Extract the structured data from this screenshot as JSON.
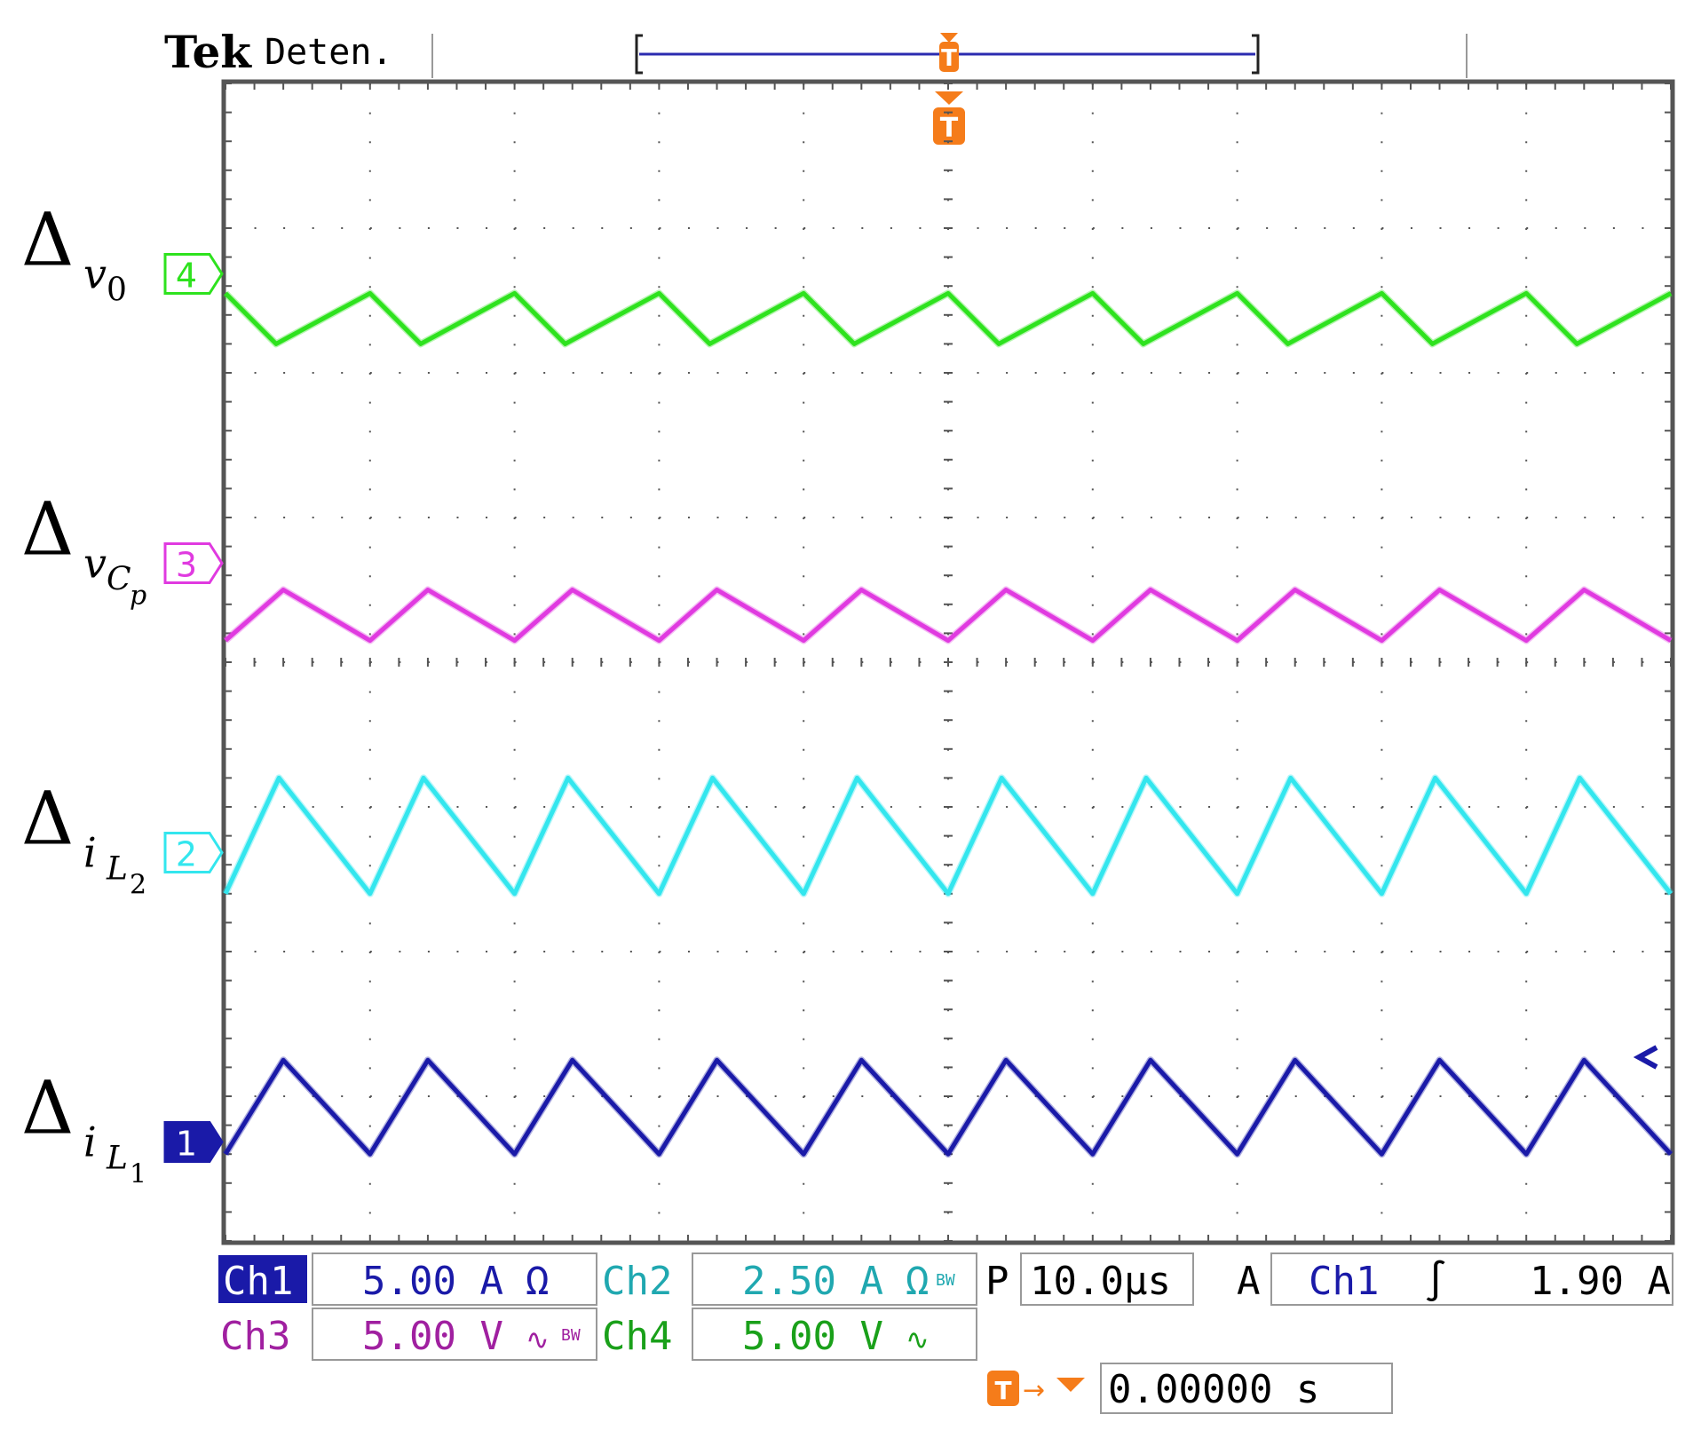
{
  "header": {
    "brand": "Tek",
    "status": "Deten.",
    "trigger_marker_glyph": "T"
  },
  "colors": {
    "background": "#ffffff",
    "grid": "#555555",
    "frame": "#555555",
    "ch1": "#1a1aa8",
    "ch2": "#33e6ee",
    "ch3": "#e03ae0",
    "ch4": "#2ee21e",
    "ch1_text": "#1a1aa8",
    "ch2_text": "#20a8b0",
    "ch3_text": "#a020a0",
    "ch4_text": "#1aa01a",
    "trigger": "#f57c1a",
    "record_bar": "#2b2bb0"
  },
  "signal_labels": [
    {
      "channel": 4,
      "symbol": "Δ",
      "base": "v",
      "sub": "0",
      "subsub": ""
    },
    {
      "channel": 3,
      "symbol": "Δ",
      "base": "v",
      "sub": "C",
      "subsub": "p"
    },
    {
      "channel": 2,
      "symbol": "Δ",
      "base": "i",
      "sub": "L",
      "subsub": "2"
    },
    {
      "channel": 1,
      "symbol": "Δ",
      "base": "i",
      "sub": "L",
      "subsub": "1"
    }
  ],
  "channel_markers": [
    {
      "channel": 4,
      "text": "4"
    },
    {
      "channel": 3,
      "text": "3"
    },
    {
      "channel": 2,
      "text": "2"
    },
    {
      "channel": 1,
      "text": "1"
    }
  ],
  "readouts": {
    "ch1_label": "Ch1",
    "ch1_scale": "5.00 A",
    "ch1_coupling": "Ω",
    "ch2_label": "Ch2",
    "ch2_scale": "2.50 A",
    "ch2_coupling": "Ω",
    "ch2_bw": "BW",
    "ch3_label": "Ch3",
    "ch3_scale": "5.00 V",
    "ch3_coupling": "∿",
    "ch3_bw": "BW",
    "ch4_label": "Ch4",
    "ch4_scale": "5.00 V",
    "ch4_coupling": "∿",
    "timebase_label": "P",
    "timebase": "10.0μs",
    "trigger_mode": "A",
    "trigger_source": "Ch1",
    "trigger_slope": "∫",
    "trigger_level": "1.90 A",
    "trigger_pos_label": "T→",
    "trigger_position": "0.00000 s"
  },
  "chart_data": {
    "type": "line",
    "divisions": {
      "x": 10,
      "y": 8
    },
    "xlim_div": [
      0,
      10
    ],
    "ylim_div": [
      0,
      8
    ],
    "grid": true,
    "series": [
      {
        "channel": 4,
        "values": [
          [
            0,
            1.45
          ],
          [
            0.35,
            1.8
          ],
          [
            1.0,
            1.45
          ],
          [
            1.35,
            1.8
          ],
          [
            2.0,
            1.45
          ],
          [
            2.35,
            1.8
          ],
          [
            3.0,
            1.45
          ],
          [
            3.35,
            1.8
          ],
          [
            4.0,
            1.45
          ],
          [
            4.35,
            1.8
          ],
          [
            5.0,
            1.45
          ],
          [
            5.35,
            1.8
          ],
          [
            6.0,
            1.45
          ],
          [
            6.35,
            1.8
          ],
          [
            7.0,
            1.45
          ],
          [
            7.35,
            1.8
          ],
          [
            8.0,
            1.45
          ],
          [
            8.35,
            1.8
          ],
          [
            9.0,
            1.45
          ],
          [
            9.35,
            1.8
          ],
          [
            10,
            1.45
          ]
        ]
      },
      {
        "channel": 3,
        "values": [
          [
            0,
            3.85
          ],
          [
            0.4,
            3.5
          ],
          [
            1.0,
            3.85
          ],
          [
            1.4,
            3.5
          ],
          [
            2.0,
            3.85
          ],
          [
            2.4,
            3.5
          ],
          [
            3.0,
            3.85
          ],
          [
            3.4,
            3.5
          ],
          [
            4.0,
            3.85
          ],
          [
            4.4,
            3.5
          ],
          [
            5.0,
            3.85
          ],
          [
            5.4,
            3.5
          ],
          [
            6.0,
            3.85
          ],
          [
            6.4,
            3.5
          ],
          [
            7.0,
            3.85
          ],
          [
            7.4,
            3.5
          ],
          [
            8.0,
            3.85
          ],
          [
            8.4,
            3.5
          ],
          [
            9.0,
            3.85
          ],
          [
            9.4,
            3.5
          ],
          [
            10,
            3.85
          ]
        ]
      },
      {
        "channel": 2,
        "values": [
          [
            0,
            5.6
          ],
          [
            0.37,
            4.8
          ],
          [
            1.0,
            5.6
          ],
          [
            1.37,
            4.8
          ],
          [
            2.0,
            5.6
          ],
          [
            2.37,
            4.8
          ],
          [
            3.0,
            5.6
          ],
          [
            3.37,
            4.8
          ],
          [
            4.0,
            5.6
          ],
          [
            4.37,
            4.8
          ],
          [
            5.0,
            5.6
          ],
          [
            5.37,
            4.8
          ],
          [
            6.0,
            5.6
          ],
          [
            6.37,
            4.8
          ],
          [
            7.0,
            5.6
          ],
          [
            7.37,
            4.8
          ],
          [
            8.0,
            5.6
          ],
          [
            8.37,
            4.8
          ],
          [
            9.0,
            5.6
          ],
          [
            9.37,
            4.8
          ],
          [
            10,
            5.6
          ]
        ]
      },
      {
        "channel": 1,
        "values": [
          [
            0,
            7.4
          ],
          [
            0.4,
            6.75
          ],
          [
            1.0,
            7.4
          ],
          [
            1.4,
            6.75
          ],
          [
            2.0,
            7.4
          ],
          [
            2.4,
            6.75
          ],
          [
            3.0,
            7.4
          ],
          [
            3.4,
            6.75
          ],
          [
            4.0,
            7.4
          ],
          [
            4.4,
            6.75
          ],
          [
            5.0,
            7.4
          ],
          [
            5.4,
            6.75
          ],
          [
            6.0,
            7.4
          ],
          [
            6.4,
            6.75
          ],
          [
            7.0,
            7.4
          ],
          [
            7.4,
            6.75
          ],
          [
            8.0,
            7.4
          ],
          [
            8.4,
            6.75
          ],
          [
            9.0,
            7.4
          ],
          [
            9.4,
            6.75
          ],
          [
            10,
            7.4
          ]
        ]
      }
    ]
  }
}
